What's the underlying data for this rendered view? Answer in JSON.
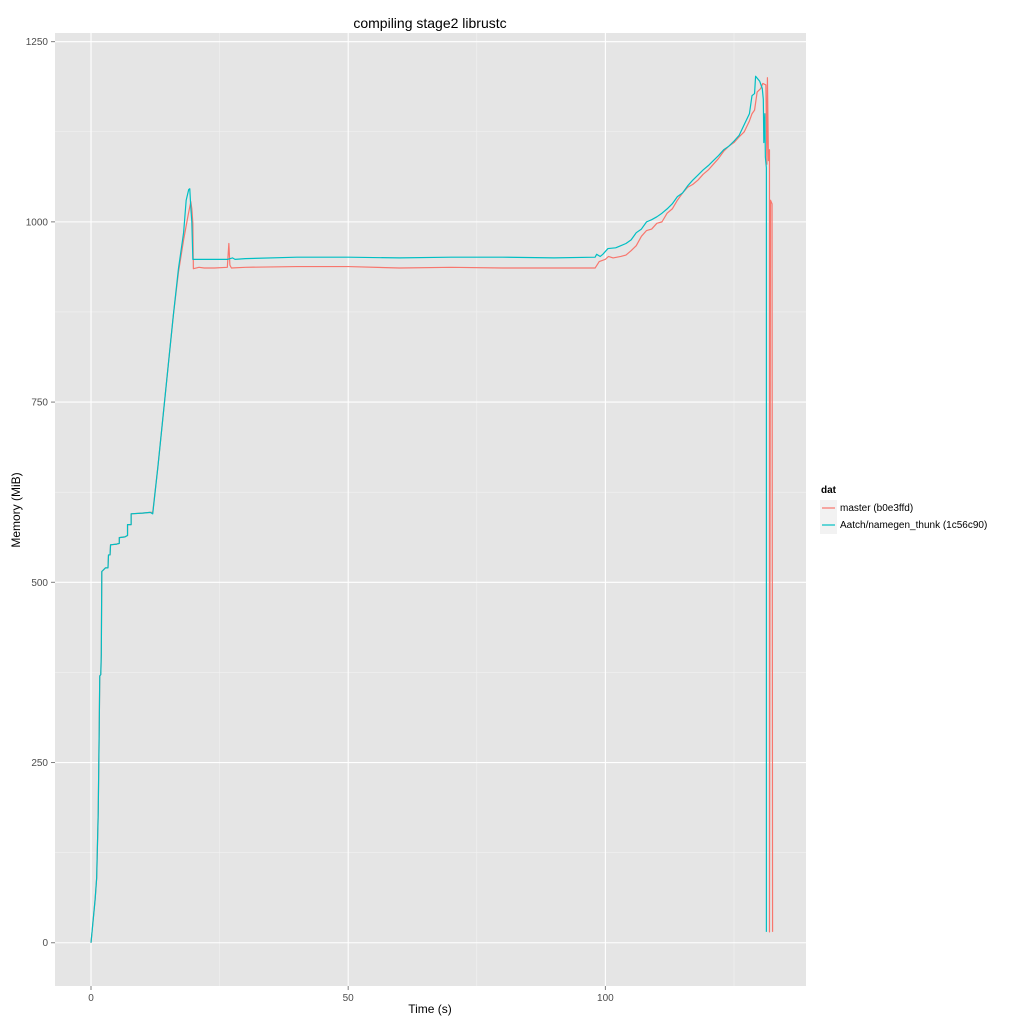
{
  "chart_data": {
    "type": "line",
    "title": "compiling stage2 librustc",
    "xlabel": "Time (s)",
    "ylabel": "Memory (MiB)",
    "xlim": [
      -7,
      139
    ],
    "ylim": [
      -60,
      1262
    ],
    "x_ticks": [
      0,
      50,
      100
    ],
    "y_ticks": [
      0,
      250,
      500,
      750,
      1000,
      1250
    ],
    "grid": true,
    "legend": {
      "title": "dat",
      "placement": "right"
    },
    "series": [
      {
        "name": "master (b0e3ffd)",
        "color": "#F8766D",
        "points": [
          [
            0,
            0
          ],
          [
            0.4,
            30
          ],
          [
            0.8,
            60
          ],
          [
            1.1,
            90
          ],
          [
            1.4,
            180
          ],
          [
            1.6,
            300
          ],
          [
            1.7,
            370
          ],
          [
            1.9,
            372
          ],
          [
            2,
            400
          ],
          [
            2.1,
            515
          ],
          [
            2.8,
            520
          ],
          [
            3.3,
            520
          ],
          [
            3.4,
            538
          ],
          [
            3.7,
            538
          ],
          [
            3.8,
            552
          ],
          [
            5,
            553
          ],
          [
            5.5,
            554
          ],
          [
            5.5,
            562
          ],
          [
            6.6,
            563
          ],
          [
            7.1,
            565
          ],
          [
            7.1,
            580
          ],
          [
            7.8,
            580
          ],
          [
            7.8,
            595
          ],
          [
            10,
            596
          ],
          [
            11.5,
            597
          ],
          [
            12,
            597
          ],
          [
            13,
            660
          ],
          [
            14,
            730
          ],
          [
            15,
            800
          ],
          [
            16,
            870
          ],
          [
            17,
            930
          ],
          [
            18,
            975
          ],
          [
            18.9,
            1010
          ],
          [
            19.4,
            1028
          ],
          [
            19.6,
            1018
          ],
          [
            19.8,
            998
          ],
          [
            19.9,
            935
          ],
          [
            21,
            937
          ],
          [
            22,
            936
          ],
          [
            24,
            936
          ],
          [
            26.5,
            937
          ],
          [
            26.8,
            970
          ],
          [
            27,
            940
          ],
          [
            27.3,
            936
          ],
          [
            30,
            937
          ],
          [
            40,
            938
          ],
          [
            50,
            938
          ],
          [
            60,
            936
          ],
          [
            70,
            937
          ],
          [
            80,
            936
          ],
          [
            90,
            936
          ],
          [
            98,
            936
          ],
          [
            98.8,
            945
          ],
          [
            100,
            948
          ],
          [
            100.6,
            952
          ],
          [
            101.5,
            950
          ],
          [
            103,
            952
          ],
          [
            104,
            954
          ],
          [
            105,
            960
          ],
          [
            106,
            967
          ],
          [
            107,
            980
          ],
          [
            108,
            988
          ],
          [
            109,
            990
          ],
          [
            110,
            998
          ],
          [
            111,
            1000
          ],
          [
            112,
            1012
          ],
          [
            113,
            1018
          ],
          [
            114,
            1030
          ],
          [
            115,
            1040
          ],
          [
            116,
            1048
          ],
          [
            117,
            1052
          ],
          [
            118,
            1058
          ],
          [
            119,
            1066
          ],
          [
            120,
            1072
          ],
          [
            121,
            1080
          ],
          [
            122,
            1088
          ],
          [
            123,
            1098
          ],
          [
            124,
            1105
          ],
          [
            125,
            1110
          ],
          [
            126,
            1118
          ],
          [
            127,
            1125
          ],
          [
            128,
            1140
          ],
          [
            128.5,
            1150
          ],
          [
            129,
            1155
          ],
          [
            129.5,
            1180
          ],
          [
            130.2,
            1185
          ],
          [
            130.6,
            1192
          ],
          [
            131.2,
            1190
          ],
          [
            131.4,
            1080
          ],
          [
            131.5,
            1200
          ],
          [
            131.7,
            1085
          ],
          [
            131.9,
            1100
          ],
          [
            131.9,
            15
          ],
          [
            132.1,
            1030
          ],
          [
            132.4,
            1025
          ],
          [
            132.5,
            15
          ]
        ]
      },
      {
        "name": "Aatch/namegen_thunk (1c56c90)",
        "color": "#00BFC4",
        "points": [
          [
            0,
            0
          ],
          [
            0.4,
            30
          ],
          [
            0.8,
            60
          ],
          [
            1.1,
            90
          ],
          [
            1.4,
            180
          ],
          [
            1.6,
            300
          ],
          [
            1.7,
            370
          ],
          [
            1.9,
            372
          ],
          [
            2,
            400
          ],
          [
            2.1,
            515
          ],
          [
            2.8,
            520
          ],
          [
            3.3,
            520
          ],
          [
            3.4,
            538
          ],
          [
            3.7,
            538
          ],
          [
            3.8,
            552
          ],
          [
            5,
            553
          ],
          [
            5.5,
            554
          ],
          [
            5.5,
            562
          ],
          [
            6.6,
            563
          ],
          [
            7.1,
            565
          ],
          [
            7.1,
            580
          ],
          [
            7.8,
            580
          ],
          [
            7.8,
            595
          ],
          [
            10,
            596
          ],
          [
            11.5,
            597
          ],
          [
            12,
            595
          ],
          [
            13,
            660
          ],
          [
            14,
            730
          ],
          [
            15,
            800
          ],
          [
            16,
            870
          ],
          [
            17,
            935
          ],
          [
            18,
            985
          ],
          [
            18.5,
            1030
          ],
          [
            19,
            1045
          ],
          [
            19.2,
            1046
          ],
          [
            19.4,
            1020
          ],
          [
            19.6,
            1000
          ],
          [
            19.8,
            948
          ],
          [
            22,
            948
          ],
          [
            26,
            948
          ],
          [
            26.6,
            948
          ],
          [
            27.5,
            950
          ],
          [
            28,
            948
          ],
          [
            30,
            949
          ],
          [
            40,
            951
          ],
          [
            50,
            951
          ],
          [
            60,
            950
          ],
          [
            70,
            951
          ],
          [
            80,
            951
          ],
          [
            90,
            950
          ],
          [
            98,
            951
          ],
          [
            98.3,
            955
          ],
          [
            99,
            952
          ],
          [
            99.5,
            955
          ],
          [
            100.5,
            963
          ],
          [
            102,
            964
          ],
          [
            103,
            967
          ],
          [
            104,
            970
          ],
          [
            105,
            975
          ],
          [
            106,
            985
          ],
          [
            107,
            990
          ],
          [
            108,
            1000
          ],
          [
            109,
            1003
          ],
          [
            110,
            1007
          ],
          [
            111,
            1012
          ],
          [
            112,
            1018
          ],
          [
            113,
            1025
          ],
          [
            114,
            1035
          ],
          [
            115,
            1040
          ],
          [
            116,
            1050
          ],
          [
            117,
            1058
          ],
          [
            118,
            1065
          ],
          [
            119,
            1072
          ],
          [
            120,
            1078
          ],
          [
            121,
            1085
          ],
          [
            122,
            1092
          ],
          [
            123,
            1100
          ],
          [
            124,
            1105
          ],
          [
            125,
            1112
          ],
          [
            126,
            1120
          ],
          [
            127,
            1135
          ],
          [
            128,
            1150
          ],
          [
            128.5,
            1175
          ],
          [
            129,
            1178
          ],
          [
            129.2,
            1202
          ],
          [
            130,
            1195
          ],
          [
            130.5,
            1185
          ],
          [
            130.7,
            1170
          ],
          [
            130.8,
            1110
          ],
          [
            131,
            1150
          ],
          [
            131.1,
            1090
          ],
          [
            131.3,
            1075
          ],
          [
            131.3,
            15
          ]
        ]
      }
    ]
  }
}
